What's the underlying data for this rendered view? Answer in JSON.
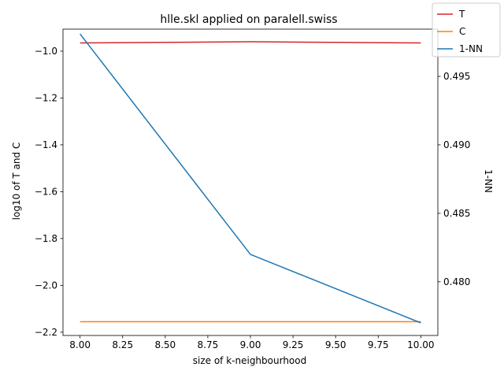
{
  "chart_data": {
    "type": "line",
    "title": "hlle.skl applied on paralell.swiss",
    "xlabel": "size of k-neighbourhood",
    "ylabel_left": "log10 of T and C",
    "ylabel_right": "1-NN",
    "x": [
      8,
      9,
      10
    ],
    "x_ticks": [
      "8.00",
      "8.25",
      "8.50",
      "8.75",
      "9.00",
      "9.25",
      "9.50",
      "9.75",
      "10.00"
    ],
    "x_tick_values": [
      8.0,
      8.25,
      8.5,
      8.75,
      9.0,
      9.25,
      9.5,
      9.75,
      10.0
    ],
    "xlim": [
      7.9,
      10.1
    ],
    "y_left_ticks": [
      "−2.2",
      "−2.0",
      "−1.8",
      "−1.6",
      "−1.4",
      "−1.2",
      "−1.0"
    ],
    "y_left_tick_values": [
      -2.2,
      -2.0,
      -1.8,
      -1.6,
      -1.4,
      -1.2,
      -1.0
    ],
    "ylim_left": [
      -2.214,
      -0.906
    ],
    "y_right_ticks": [
      "0.480",
      "0.485",
      "0.490",
      "0.495"
    ],
    "y_right_tick_values": [
      0.48,
      0.485,
      0.49,
      0.495
    ],
    "ylim_right": [
      0.47608,
      0.49845
    ],
    "legend_position": "top-right (outside plot)",
    "grid": false,
    "series": [
      {
        "name": "T",
        "axis": "left",
        "color": "#d62728",
        "values": [
          -0.965,
          -0.96,
          -0.965
        ]
      },
      {
        "name": "C",
        "axis": "left",
        "color": "#ff7f0e",
        "values": [
          -2.155,
          -2.155,
          -2.155
        ]
      },
      {
        "name": "1-NN",
        "axis": "right",
        "color": "#1f77b4",
        "values": [
          0.4981,
          0.482,
          0.477
        ]
      }
    ]
  }
}
